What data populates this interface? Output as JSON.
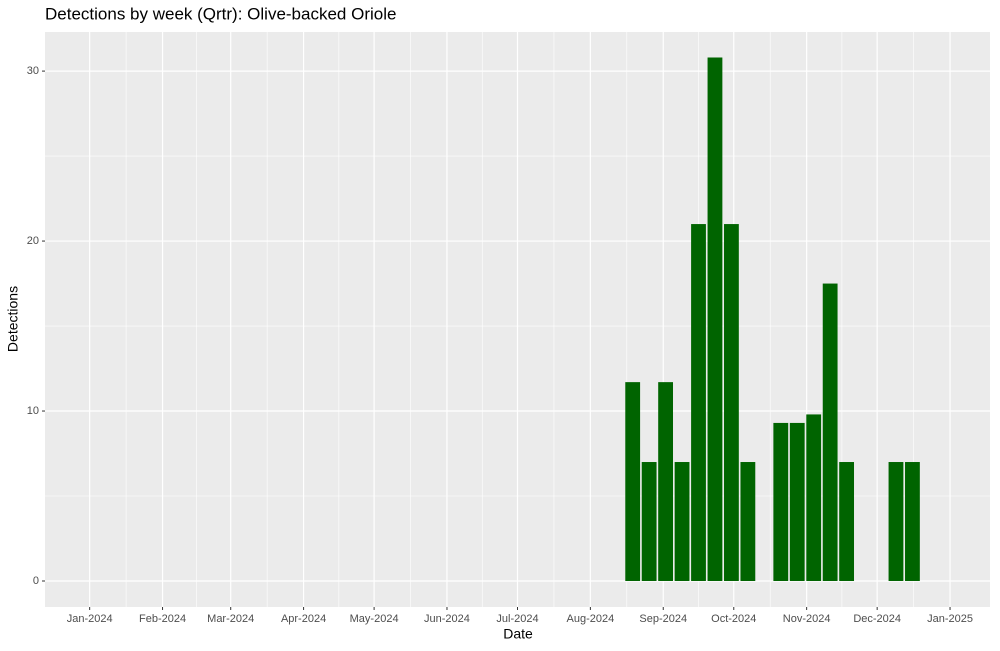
{
  "chart_data": {
    "type": "bar",
    "title": "Detections by week (Qrtr): Olive-backed Oriole",
    "x_label": "Date",
    "y_label": "Detections",
    "x": [
      "2024-08-19",
      "2024-08-26",
      "2024-09-02",
      "2024-09-09",
      "2024-09-16",
      "2024-09-23",
      "2024-09-30",
      "2024-10-07",
      "2024-10-21",
      "2024-10-28",
      "2024-11-04",
      "2024-11-11",
      "2024-11-18",
      "2024-12-09",
      "2024-12-16"
    ],
    "values": [
      11.7,
      7,
      11.7,
      7,
      21,
      30.8,
      21,
      7,
      9.3,
      9.3,
      9.8,
      17.5,
      7,
      7,
      7
    ],
    "color": "#006400",
    "xlim": [
      "2023-12-13",
      "2025-01-18"
    ],
    "xticks": [
      {
        "value": "2024-01-01",
        "label": "Jan-2024"
      },
      {
        "value": "2024-02-01",
        "label": "Feb-2024"
      },
      {
        "value": "2024-03-01",
        "label": "Mar-2024"
      },
      {
        "value": "2024-04-01",
        "label": "Apr-2024"
      },
      {
        "value": "2024-05-01",
        "label": "May-2024"
      },
      {
        "value": "2024-06-01",
        "label": "Jun-2024"
      },
      {
        "value": "2024-07-01",
        "label": "Jul-2024"
      },
      {
        "value": "2024-08-01",
        "label": "Aug-2024"
      },
      {
        "value": "2024-09-01",
        "label": "Sep-2024"
      },
      {
        "value": "2024-10-01",
        "label": "Oct-2024"
      },
      {
        "value": "2024-11-01",
        "label": "Nov-2024"
      },
      {
        "value": "2024-12-01",
        "label": "Dec-2024"
      },
      {
        "value": "2025-01-01",
        "label": "Jan-2025"
      }
    ],
    "ylim": [
      -1.53,
      32.3
    ],
    "yticks": [
      0,
      10,
      20,
      30
    ],
    "grid": true
  }
}
